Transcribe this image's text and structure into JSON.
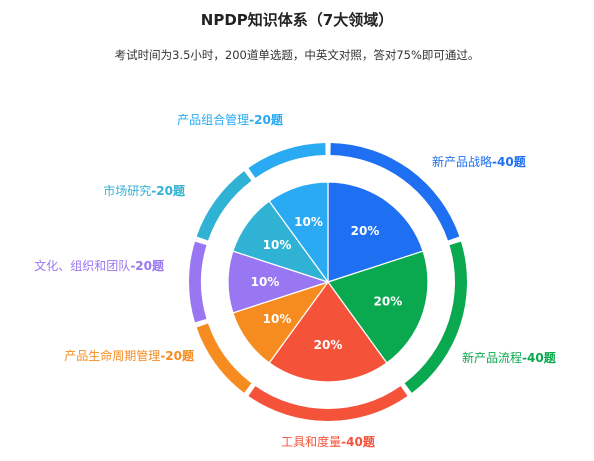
{
  "title": "NPDP知识体系（7大领域）",
  "subtitle": "考试时间为3.5小时，200道单选题，中英文对照，答对75%即可通过。",
  "chart_data": {
    "type": "pie",
    "inner_pie": {
      "values": [
        20,
        20,
        20,
        10,
        10,
        10,
        10
      ],
      "labels": [
        "20%",
        "20%",
        "20%",
        "10%",
        "10%",
        "10%",
        "10%"
      ],
      "colors": [
        "#1e6ff2",
        "#0aa84f",
        "#f4533a",
        "#f68c1f",
        "#9a77f2",
        "#2fb2d4",
        "#29aaf3"
      ]
    },
    "outer_ring": {
      "categories": [
        {
          "name": "新产品战略",
          "suffix": "-40题",
          "value": 40,
          "color": "#1e6ff2"
        },
        {
          "name": "新产品流程",
          "suffix": "-40题",
          "value": 40,
          "color": "#0aa84f"
        },
        {
          "name": "工具和度量",
          "suffix": "-40题",
          "value": 40,
          "color": "#f4533a"
        },
        {
          "name": "产品生命周期管理",
          "suffix": "-20题",
          "value": 20,
          "color": "#f68c1f"
        },
        {
          "name": "文化、组织和团队",
          "suffix": "-20题",
          "value": 20,
          "color": "#9a77f2"
        },
        {
          "name": "市场研究",
          "suffix": "-20题",
          "value": 20,
          "color": "#2fb2d4"
        },
        {
          "name": "产品组合管理",
          "suffix": "-20题",
          "value": 20,
          "color": "#29aaf3"
        }
      ]
    }
  }
}
